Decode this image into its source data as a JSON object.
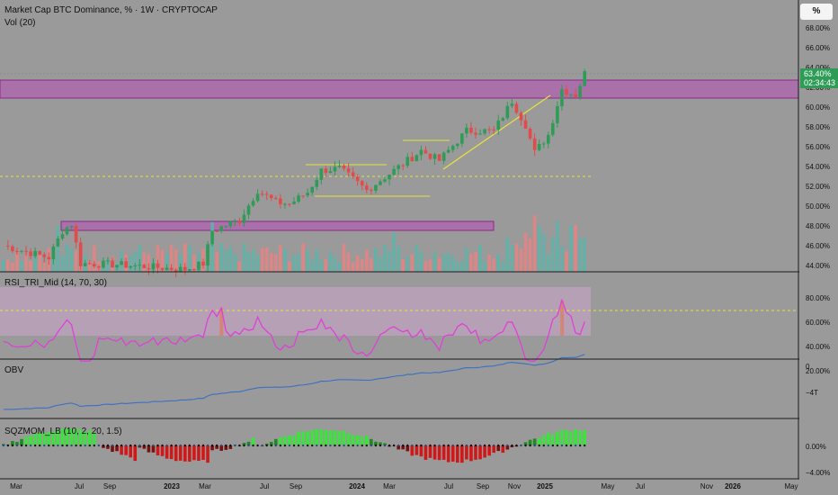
{
  "header": {
    "title": "Market Cap BTC Dominance, % · 1W · CRYPTOCAP",
    "vol": "Vol (20)",
    "scale_button": "%"
  },
  "price_badge": {
    "value": "63.40%",
    "countdown": "02:34:43"
  },
  "panes": {
    "main": {
      "ticks": [
        "68.00%",
        "66.00%",
        "64.00%",
        "62.00%",
        "60.00%",
        "58.00%",
        "56.00%",
        "54.00%",
        "52.00%",
        "50.00%",
        "48.00%",
        "46.00%",
        "44.00%"
      ]
    },
    "rsi": {
      "label": "RSI_TRI_Mid (14, 70, 30)",
      "ticks": [
        "80.00%",
        "60.00%",
        "40.00%",
        "20.00%"
      ]
    },
    "obv": {
      "label": "OBV",
      "ticks": [
        "0",
        "−4T"
      ]
    },
    "sqz": {
      "label": "SQZMOM_LB (10, 2, 20, 1.5)",
      "ticks": [
        "0.00%",
        "−4.00%"
      ]
    }
  },
  "time_axis": [
    "Mar",
    "Jul",
    "Sep",
    "2023",
    "Mar",
    "Jul",
    "Sep",
    "2024",
    "Mar",
    "Jul",
    "Sep",
    "Nov",
    "2025",
    "May",
    "Jul",
    "Nov",
    "2026",
    "May"
  ],
  "colors": {
    "up": "#2e9c57",
    "down": "#e34b4b",
    "zone": "#b74fb7",
    "rsi": "#e040d8",
    "obv": "#3b6fc4",
    "trend": "#e8e33a"
  }
}
